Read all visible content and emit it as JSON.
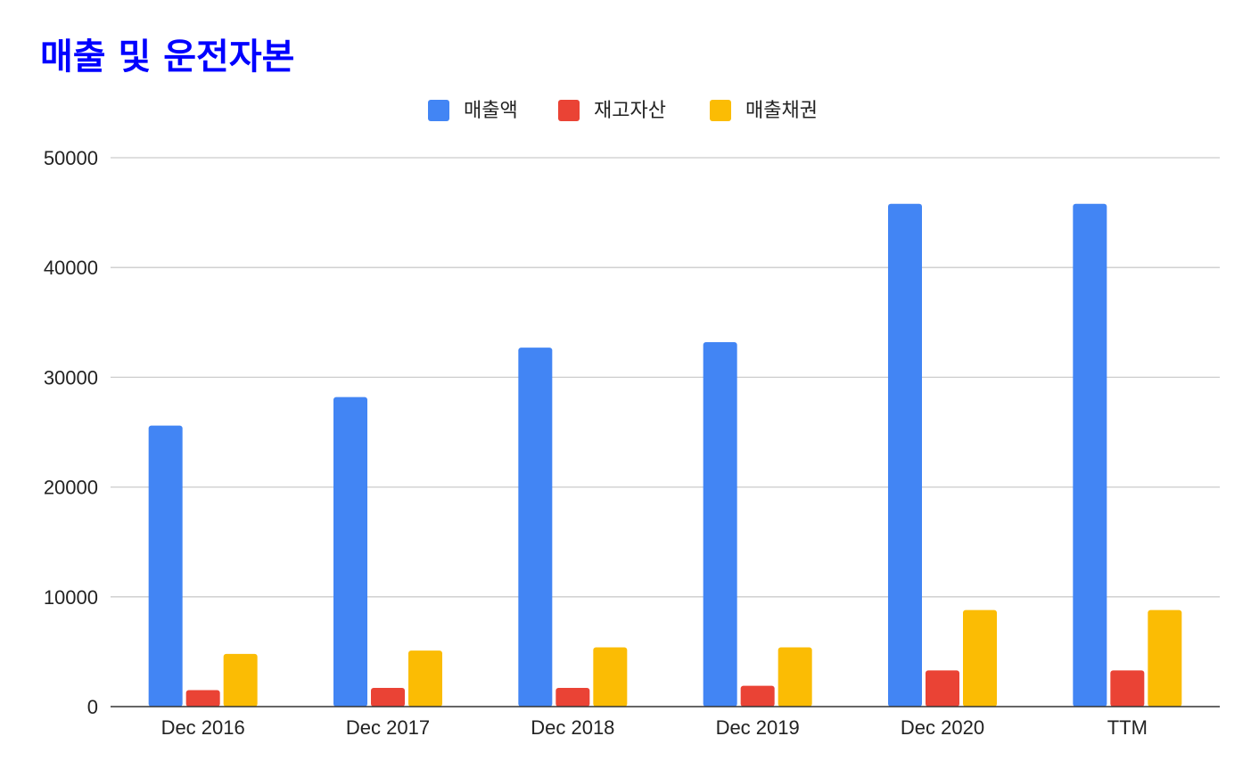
{
  "chart_data": {
    "type": "bar",
    "title": "매출 및 운전자본",
    "categories": [
      "Dec 2016",
      "Dec 2017",
      "Dec 2018",
      "Dec 2019",
      "Dec 2020",
      "TTM"
    ],
    "series": [
      {
        "name": "매출액",
        "color": "#4285f4",
        "values": [
          25600,
          28200,
          32700,
          33200,
          45800,
          45800
        ]
      },
      {
        "name": "재고자산",
        "color": "#ea4335",
        "values": [
          1500,
          1700,
          1700,
          1900,
          3300,
          3300
        ]
      },
      {
        "name": "매출채권",
        "color": "#fbbc04",
        "values": [
          4800,
          5100,
          5400,
          5400,
          8800,
          8800
        ]
      }
    ],
    "yticks": [
      "0",
      "10000",
      "20000",
      "30000",
      "40000",
      "50000"
    ],
    "ylim": [
      0,
      50000
    ],
    "xlabel": "",
    "ylabel": "",
    "grid": true,
    "legend": "top-center",
    "title_color": "#0000ff"
  }
}
